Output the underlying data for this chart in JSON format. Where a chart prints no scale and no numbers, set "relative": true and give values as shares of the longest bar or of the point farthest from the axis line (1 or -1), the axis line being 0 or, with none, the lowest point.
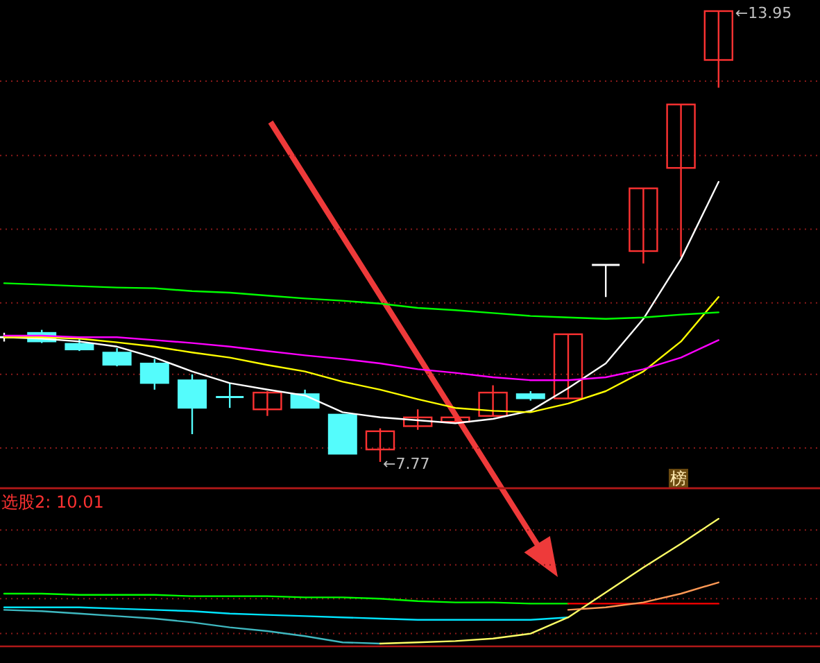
{
  "chart_data": [
    {
      "type": "candlestick",
      "categories": [
        null,
        null,
        null,
        null,
        null,
        null,
        null,
        null,
        null,
        null,
        null,
        null,
        null,
        null,
        null,
        null,
        null,
        null,
        null,
        null
      ],
      "ohlc": [
        [
          9.48,
          9.54,
          9.42,
          9.48
        ],
        [
          9.54,
          9.58,
          9.4,
          9.42
        ],
        [
          9.39,
          9.46,
          9.29,
          9.31
        ],
        [
          9.27,
          9.33,
          9.08,
          9.1
        ],
        [
          9.12,
          9.18,
          8.76,
          8.85
        ],
        [
          8.89,
          8.97,
          8.15,
          8.51
        ],
        [
          8.66,
          8.85,
          8.51,
          8.66
        ],
        [
          8.49,
          8.74,
          8.4,
          8.72
        ],
        [
          8.7,
          8.76,
          8.51,
          8.51
        ],
        [
          8.42,
          8.42,
          7.88,
          7.88
        ],
        [
          7.94,
          8.23,
          7.77,
          8.19
        ],
        [
          8.26,
          8.49,
          8.21,
          8.38
        ],
        [
          8.32,
          8.38,
          8.3,
          8.38
        ],
        [
          8.4,
          8.82,
          8.4,
          8.72
        ],
        [
          8.7,
          8.74,
          8.61,
          8.64
        ],
        [
          8.64,
          9.52,
          8.64,
          9.52
        ],
        [
          10.47,
          10.47,
          10.03,
          10.47
        ],
        [
          10.66,
          11.52,
          10.49,
          11.52
        ],
        [
          11.8,
          12.67,
          10.58,
          12.67
        ],
        [
          13.28,
          13.95,
          12.9,
          13.95
        ]
      ],
      "colors": [
        "#ffffff",
        "#54fcfc",
        "#54fcfc",
        "#54fcfc",
        "#54fcfc",
        "#54fcfc",
        "#54fcfc",
        "#ff3232",
        "#54fcfc",
        "#54fcfc",
        "#ff3232",
        "#ff3232",
        "#ff3232",
        "#ff3232",
        "#54fcfc",
        "#ff3232",
        "#ffffff",
        "#ff3232",
        "#ff3232",
        "#ff3232"
      ],
      "ref_lines": [
        {
          "axis": "y",
          "value": 12.99,
          "color": "#8a1a1a",
          "line_style": "dotted"
        },
        {
          "axis": "y",
          "value": 11.97,
          "color": "#8a1a1a",
          "line_style": "dotted"
        },
        {
          "axis": "y",
          "value": 10.96,
          "color": "#8a1a1a",
          "line_style": "dotted"
        },
        {
          "axis": "y",
          "value": 9.95,
          "color": "#8a1a1a",
          "line_style": "dotted"
        },
        {
          "axis": "y",
          "value": 8.97,
          "color": "#8a1a1a",
          "line_style": "dotted"
        },
        {
          "axis": "y",
          "value": 7.96,
          "color": "#8a1a1a",
          "line_style": "dotted"
        }
      ],
      "series": [
        {
          "type": "line",
          "color": "#ffffff",
          "values": [
            9.48,
            9.46,
            9.42,
            9.35,
            9.2,
            9.01,
            8.85,
            8.76,
            8.68,
            8.45,
            8.38,
            8.34,
            8.3,
            8.36,
            8.47,
            8.78,
            9.12,
            9.73,
            10.55,
            11.61
          ]
        },
        {
          "type": "line",
          "color": "#ffff00",
          "values": [
            9.48,
            9.48,
            9.46,
            9.41,
            9.35,
            9.27,
            9.2,
            9.1,
            9.01,
            8.87,
            8.76,
            8.63,
            8.51,
            8.47,
            8.45,
            8.57,
            8.74,
            9.01,
            9.42,
            10.03
          ]
        },
        {
          "type": "line",
          "color": "#ff00ff",
          "values": [
            9.5,
            9.5,
            9.48,
            9.48,
            9.44,
            9.4,
            9.35,
            9.29,
            9.23,
            9.18,
            9.12,
            9.04,
            8.99,
            8.93,
            8.89,
            8.89,
            8.93,
            9.04,
            9.2,
            9.44
          ]
        },
        {
          "type": "line",
          "color": "#00ff00",
          "values": [
            10.22,
            10.2,
            10.18,
            10.16,
            10.15,
            10.11,
            10.09,
            10.05,
            10.01,
            9.98,
            9.94,
            9.88,
            9.85,
            9.81,
            9.77,
            9.75,
            9.73,
            9.75,
            9.79,
            9.82
          ]
        }
      ],
      "annotations": [
        "←7.77",
        "←13.95",
        "榜"
      ]
    },
    {
      "type": "line",
      "relative": true,
      "title": "选股2: 10.01",
      "ref_lines": [
        {
          "axis": "y",
          "value": 0.91,
          "color": "#8a1a1a",
          "line_style": "dotted"
        },
        {
          "axis": "y",
          "value": 0.63,
          "color": "#8a1a1a",
          "line_style": "dotted"
        },
        {
          "axis": "y",
          "value": 0.36,
          "color": "#8a1a1a",
          "line_style": "dotted"
        },
        {
          "axis": "y",
          "value": 0.08,
          "color": "#8a1a1a",
          "line_style": "dotted"
        }
      ],
      "categories": [
        null,
        null,
        null,
        null,
        null,
        null,
        null,
        null,
        null,
        null,
        null,
        null,
        null,
        null,
        null,
        null,
        null,
        null,
        null,
        null
      ],
      "series": [
        {
          "color": "#00ff00",
          "values": [
            0.4,
            0.4,
            0.39,
            0.39,
            0.39,
            0.38,
            0.38,
            0.38,
            0.37,
            0.37,
            0.36,
            0.34,
            0.33,
            0.33,
            0.32,
            0.32,
            null,
            null,
            null,
            null
          ]
        },
        {
          "color": "#ff0000",
          "values": [
            null,
            null,
            null,
            null,
            null,
            null,
            null,
            null,
            null,
            null,
            null,
            null,
            null,
            null,
            null,
            0.32,
            0.32,
            0.32,
            0.32,
            0.32
          ]
        },
        {
          "color": "#00e5ff",
          "values": [
            0.29,
            0.29,
            0.29,
            0.28,
            0.27,
            0.26,
            0.24,
            0.23,
            0.22,
            0.21,
            0.2,
            0.19,
            0.19,
            0.19,
            0.19,
            0.21,
            null,
            null,
            null,
            null
          ]
        },
        {
          "color": "#3fb8c0",
          "values": [
            0.27,
            0.26,
            0.24,
            0.22,
            0.2,
            0.17,
            0.13,
            0.1,
            0.06,
            0.01,
            0,
            null,
            null,
            null,
            null,
            null,
            null,
            null,
            null,
            null
          ]
        },
        {
          "color": "#ffff66",
          "values": [
            null,
            null,
            null,
            null,
            null,
            null,
            null,
            null,
            null,
            null,
            0,
            0.01,
            0.02,
            0.04,
            0.08,
            0.21,
            0.41,
            0.61,
            0.8,
            1
          ]
        },
        {
          "color": "#ff9955",
          "values": [
            null,
            null,
            null,
            null,
            null,
            null,
            null,
            null,
            null,
            null,
            null,
            null,
            null,
            null,
            null,
            0.27,
            0.29,
            0.33,
            0.4,
            0.49
          ]
        }
      ]
    }
  ]
}
